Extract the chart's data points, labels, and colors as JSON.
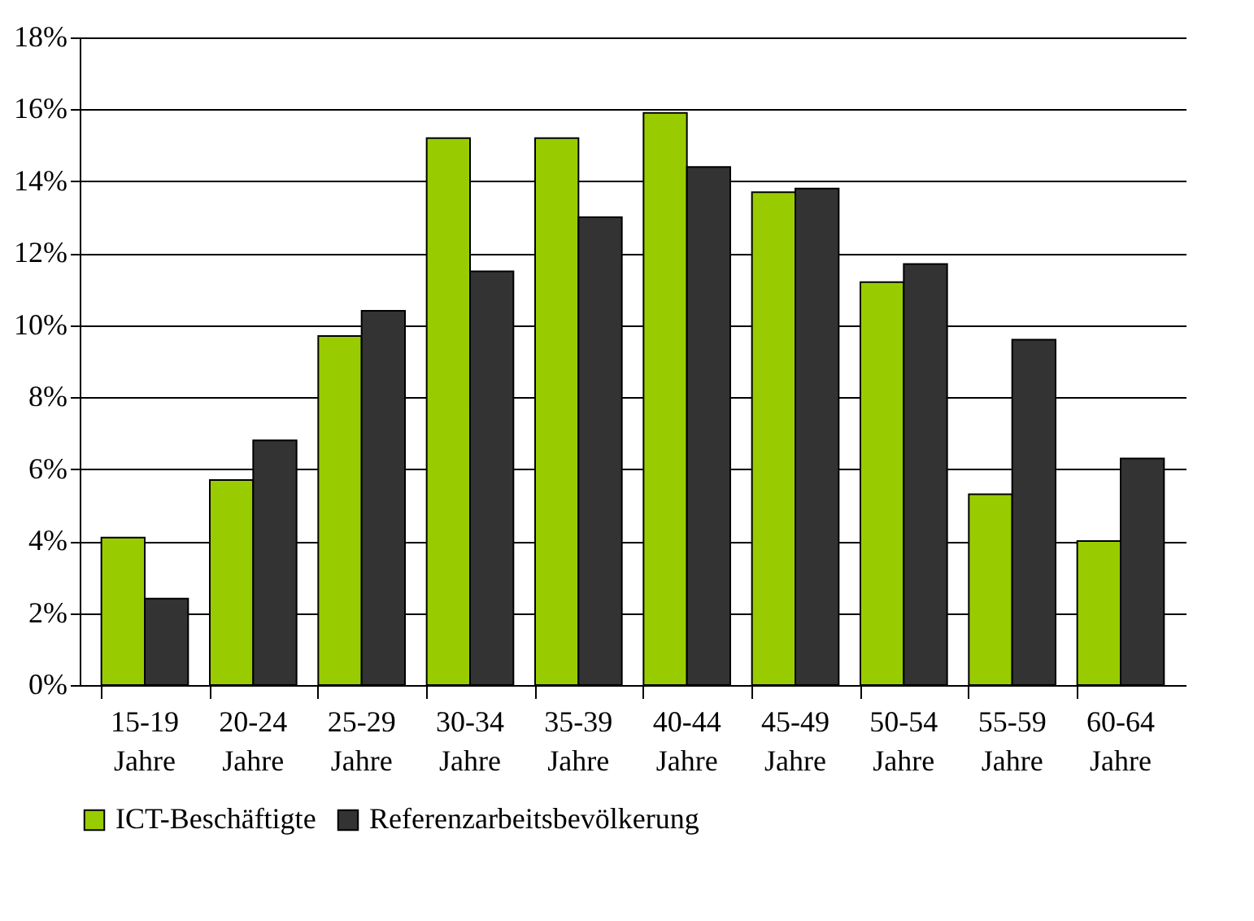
{
  "chart_data": {
    "type": "bar",
    "categories": [
      "15-19 Jahre",
      "20-24 Jahre",
      "25-29 Jahre",
      "30-34 Jahre",
      "35-39 Jahre",
      "40-44 Jahre",
      "45-49 Jahre",
      "50-54 Jahre",
      "55-59 Jahre",
      "60-64 Jahre"
    ],
    "series": [
      {
        "name": "ICT-Beschäftigte",
        "color": "#99cc00",
        "values": [
          4.1,
          5.7,
          9.7,
          15.2,
          15.2,
          15.9,
          13.7,
          11.2,
          5.3,
          4.0
        ]
      },
      {
        "name": "Referenzarbeitsbevölkerung",
        "color": "#333333",
        "values": [
          2.4,
          6.8,
          10.4,
          11.5,
          13.0,
          14.4,
          13.8,
          11.7,
          9.6,
          6.3
        ]
      }
    ],
    "ylim": [
      0,
      18
    ],
    "yticks": [
      {
        "value": 0,
        "label": "0%"
      },
      {
        "value": 2,
        "label": "2%"
      },
      {
        "value": 4,
        "label": "4%"
      },
      {
        "value": 6,
        "label": "6%"
      },
      {
        "value": 8,
        "label": "8%"
      },
      {
        "value": 10,
        "label": "10%"
      },
      {
        "value": 12,
        "label": "12%"
      },
      {
        "value": 14,
        "label": "14%"
      },
      {
        "value": 16,
        "label": "16%"
      },
      {
        "value": 18,
        "label": "18%"
      }
    ],
    "grid": "y",
    "legend": "bottom"
  }
}
